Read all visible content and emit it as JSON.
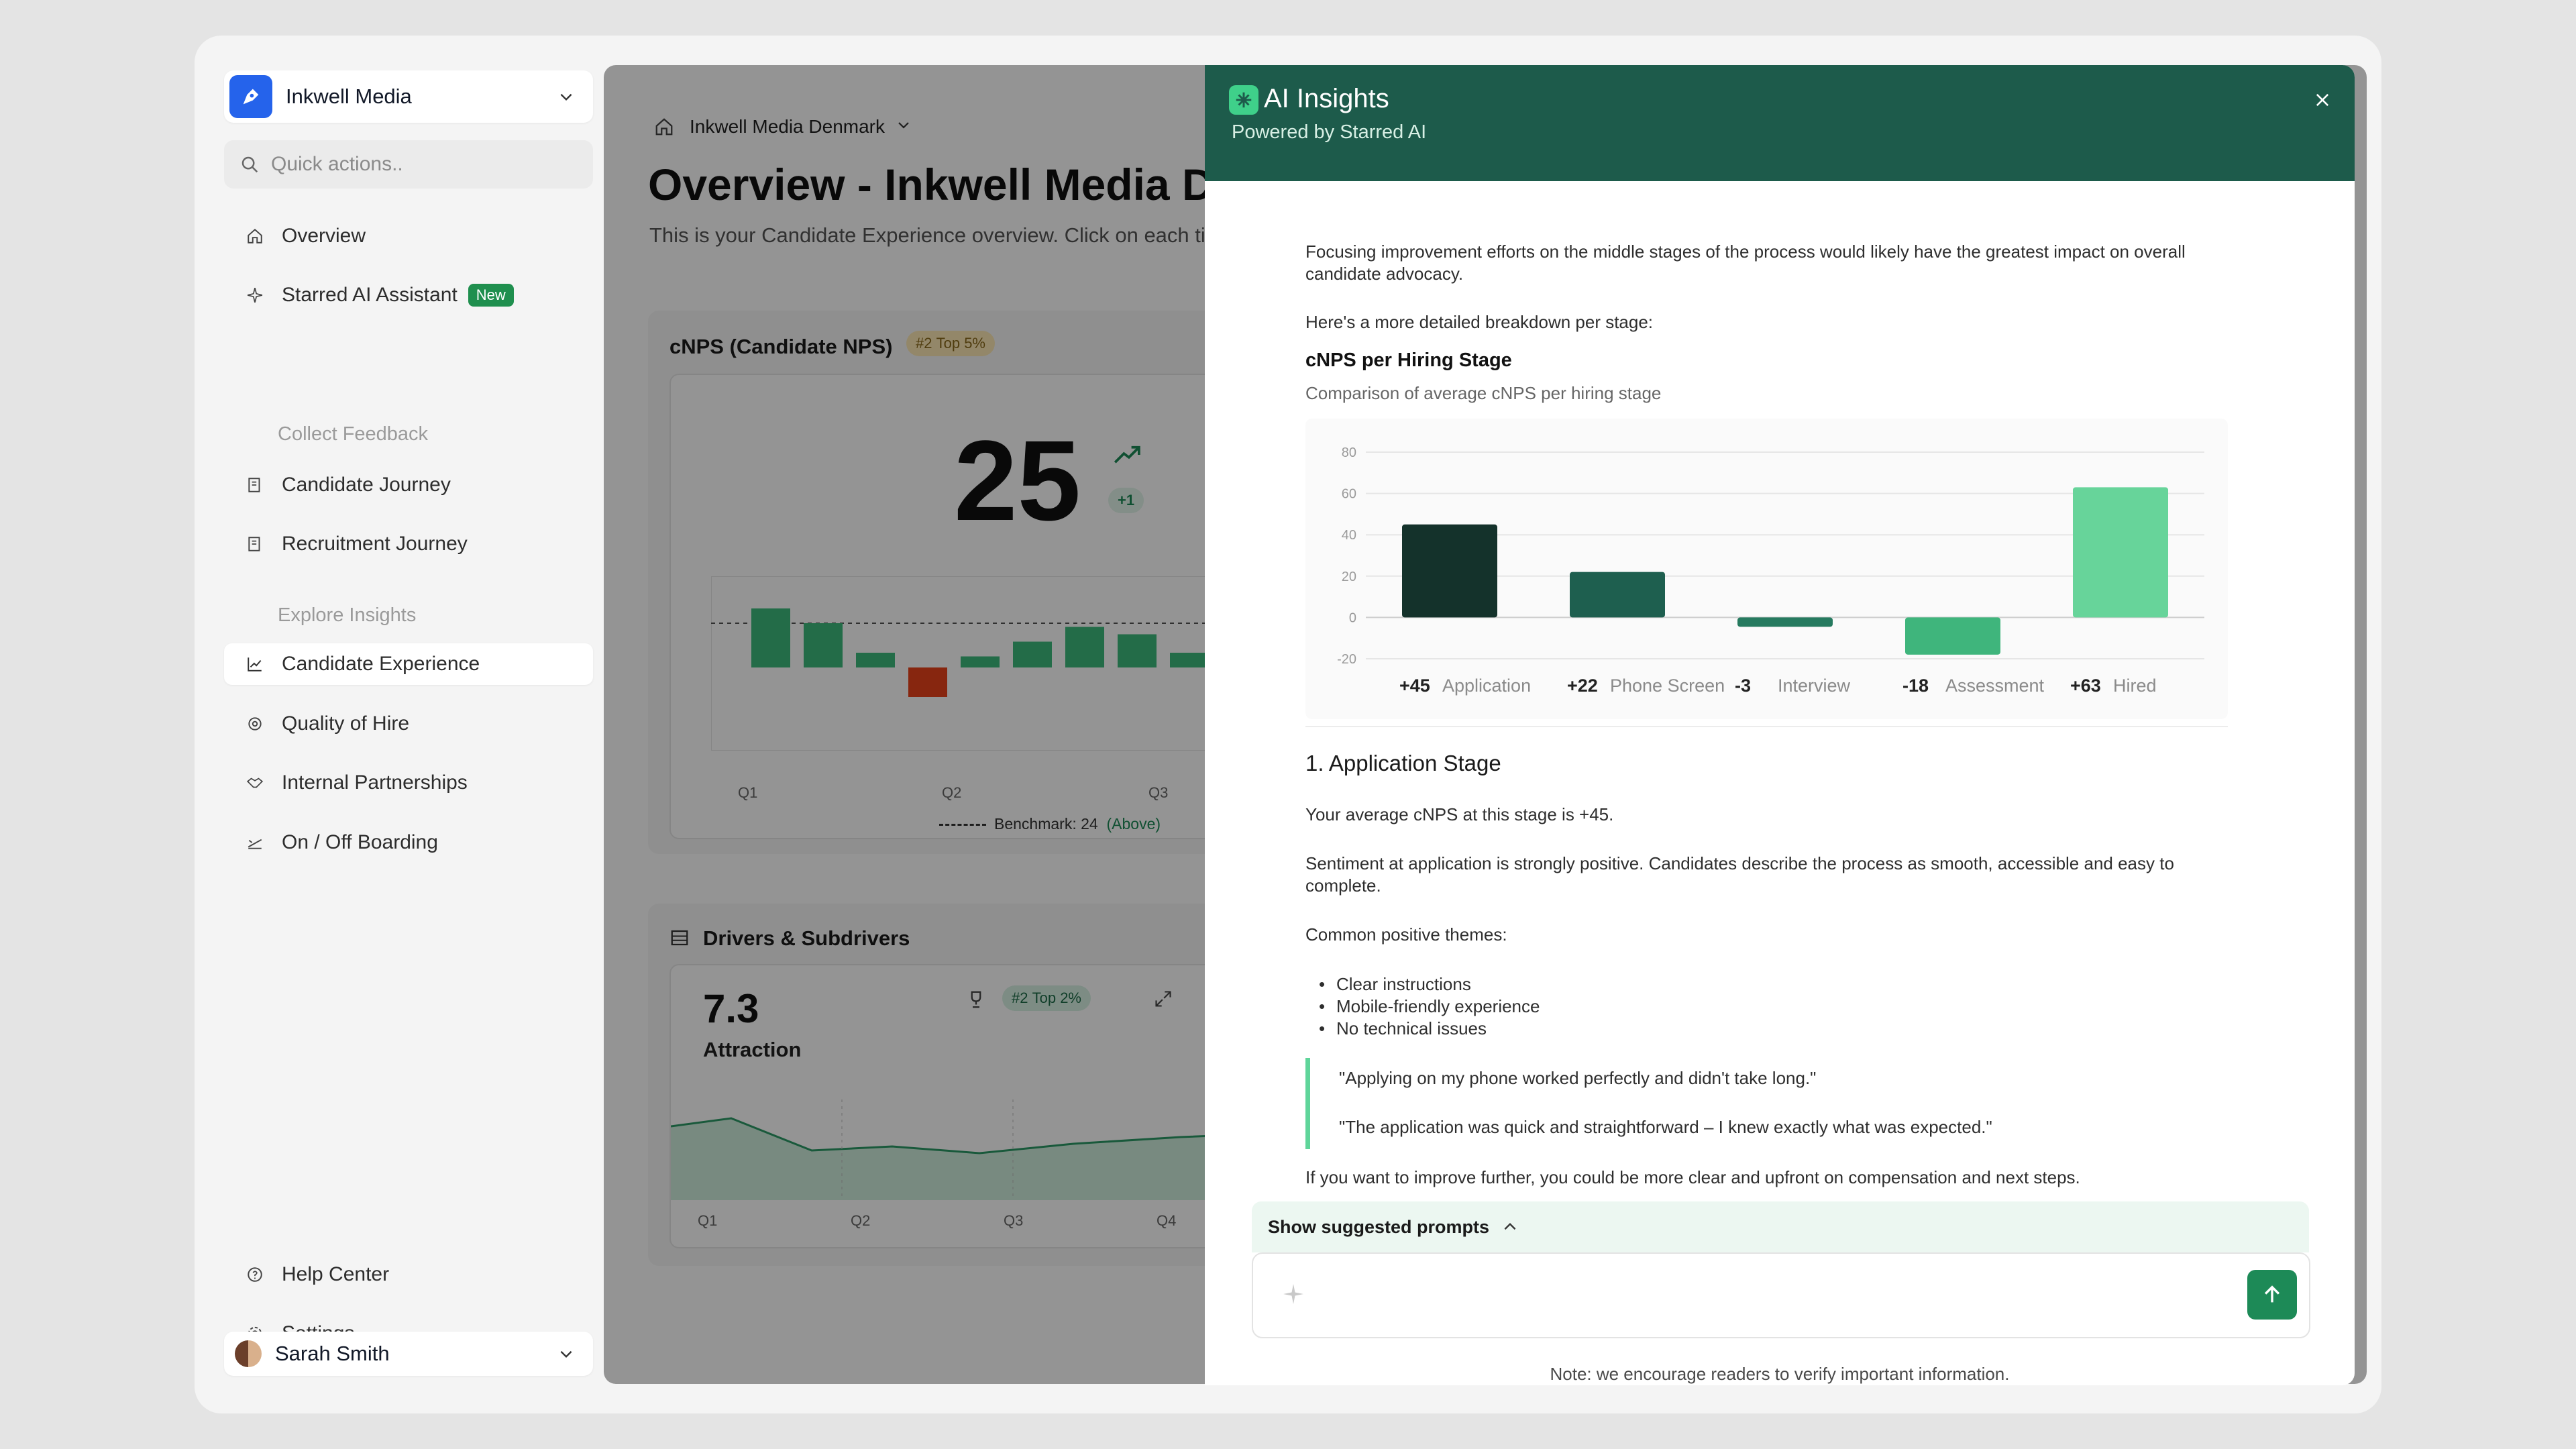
{
  "sidebar": {
    "workspace": "Inkwell Media",
    "quick_placeholder": "Quick actions..",
    "items": [
      {
        "label": "Overview"
      },
      {
        "label": "Starred AI Assistant",
        "badge": "New"
      },
      {
        "label": "Candidate Journey"
      },
      {
        "label": "Recruitment Journey"
      },
      {
        "label": "Candidate Experience"
      },
      {
        "label": "Quality of Hire"
      },
      {
        "label": "Internal Partnerships"
      },
      {
        "label": "On / Off Boarding"
      },
      {
        "label": "Help Center"
      },
      {
        "label": "Settings"
      }
    ],
    "sections": [
      "Collect Feedback",
      "Explore Insights"
    ],
    "user": "Sarah Smith"
  },
  "main": {
    "breadcrumb": "Inkwell Media Denmark",
    "title": "Overview - Inkwell Media De",
    "subtitle": "This is your Candidate Experience overview. Click on each ti",
    "cnps": {
      "title": "cNPS (Candidate NPS)",
      "rank": "#2",
      "rank_text": "Top 5%",
      "score": "25",
      "delta": "+1",
      "quarters": [
        "Q1",
        "Q2",
        "Q3"
      ],
      "bars": [
        8,
        6,
        2,
        -4,
        1.5,
        3.5,
        5.5,
        4.5,
        2
      ],
      "benchmark_label": "Benchmark: 24",
      "benchmark_status": "(Above)"
    },
    "drivers": {
      "title": "Drivers & Subdrivers",
      "score": "7.3",
      "name": "Attraction",
      "rank": "#2",
      "rank_text": "Top 2%",
      "quarters": [
        "Q1",
        "Q2",
        "Q3",
        "Q4"
      ]
    }
  },
  "panel": {
    "title": "AI Insights",
    "subtitle": "Powered by Starred AI",
    "intro": "Focusing improvement efforts on the middle stages of the process would likely have the greatest impact on overall candidate advocacy.",
    "breakdown_intro": "Here's a more detailed breakdown per stage:",
    "chart_title": "cNPS per Hiring Stage",
    "chart_subtitle": "Comparison of average cNPS per hiring stage",
    "stage_heading": "1. Application Stage",
    "stage_avg": "Your average cNPS at this stage is +45.",
    "stage_sentiment": "Sentiment at application is strongly positive. Candidates describe the process as smooth, accessible and easy to complete.",
    "themes_label": "Common positive themes:",
    "themes": [
      "Clear instructions",
      "Mobile-friendly experience",
      "No technical issues"
    ],
    "quotes": [
      "\"Applying on my phone worked perfectly and didn't take long.\"",
      "\"The application was quick and straightforward – I knew exactly what was expected.\""
    ],
    "improve": "If you want to improve further, you could be more clear and upfront on compensation and next steps.",
    "prompts_toggle": "Show suggested prompts",
    "note": "Note: we encourage readers to verify important information."
  },
  "chart_data": {
    "type": "bar",
    "title": "cNPS per Hiring Stage",
    "subtitle": "Comparison of average cNPS per hiring stage",
    "categories": [
      "Application",
      "Phone Screen",
      "Interview",
      "Assessment",
      "Hired"
    ],
    "values": [
      45,
      22,
      -3,
      -18,
      63
    ],
    "value_labels": [
      "+45",
      "+22",
      "-3",
      "-18",
      "+63"
    ],
    "colors": [
      "#14322b",
      "#1e5f4f",
      "#267a5f",
      "#3fb57c",
      "#67d49a"
    ],
    "ylim": [
      -20,
      80
    ],
    "yticks": [
      -20,
      0,
      20,
      40,
      60,
      80
    ],
    "grid": true
  }
}
